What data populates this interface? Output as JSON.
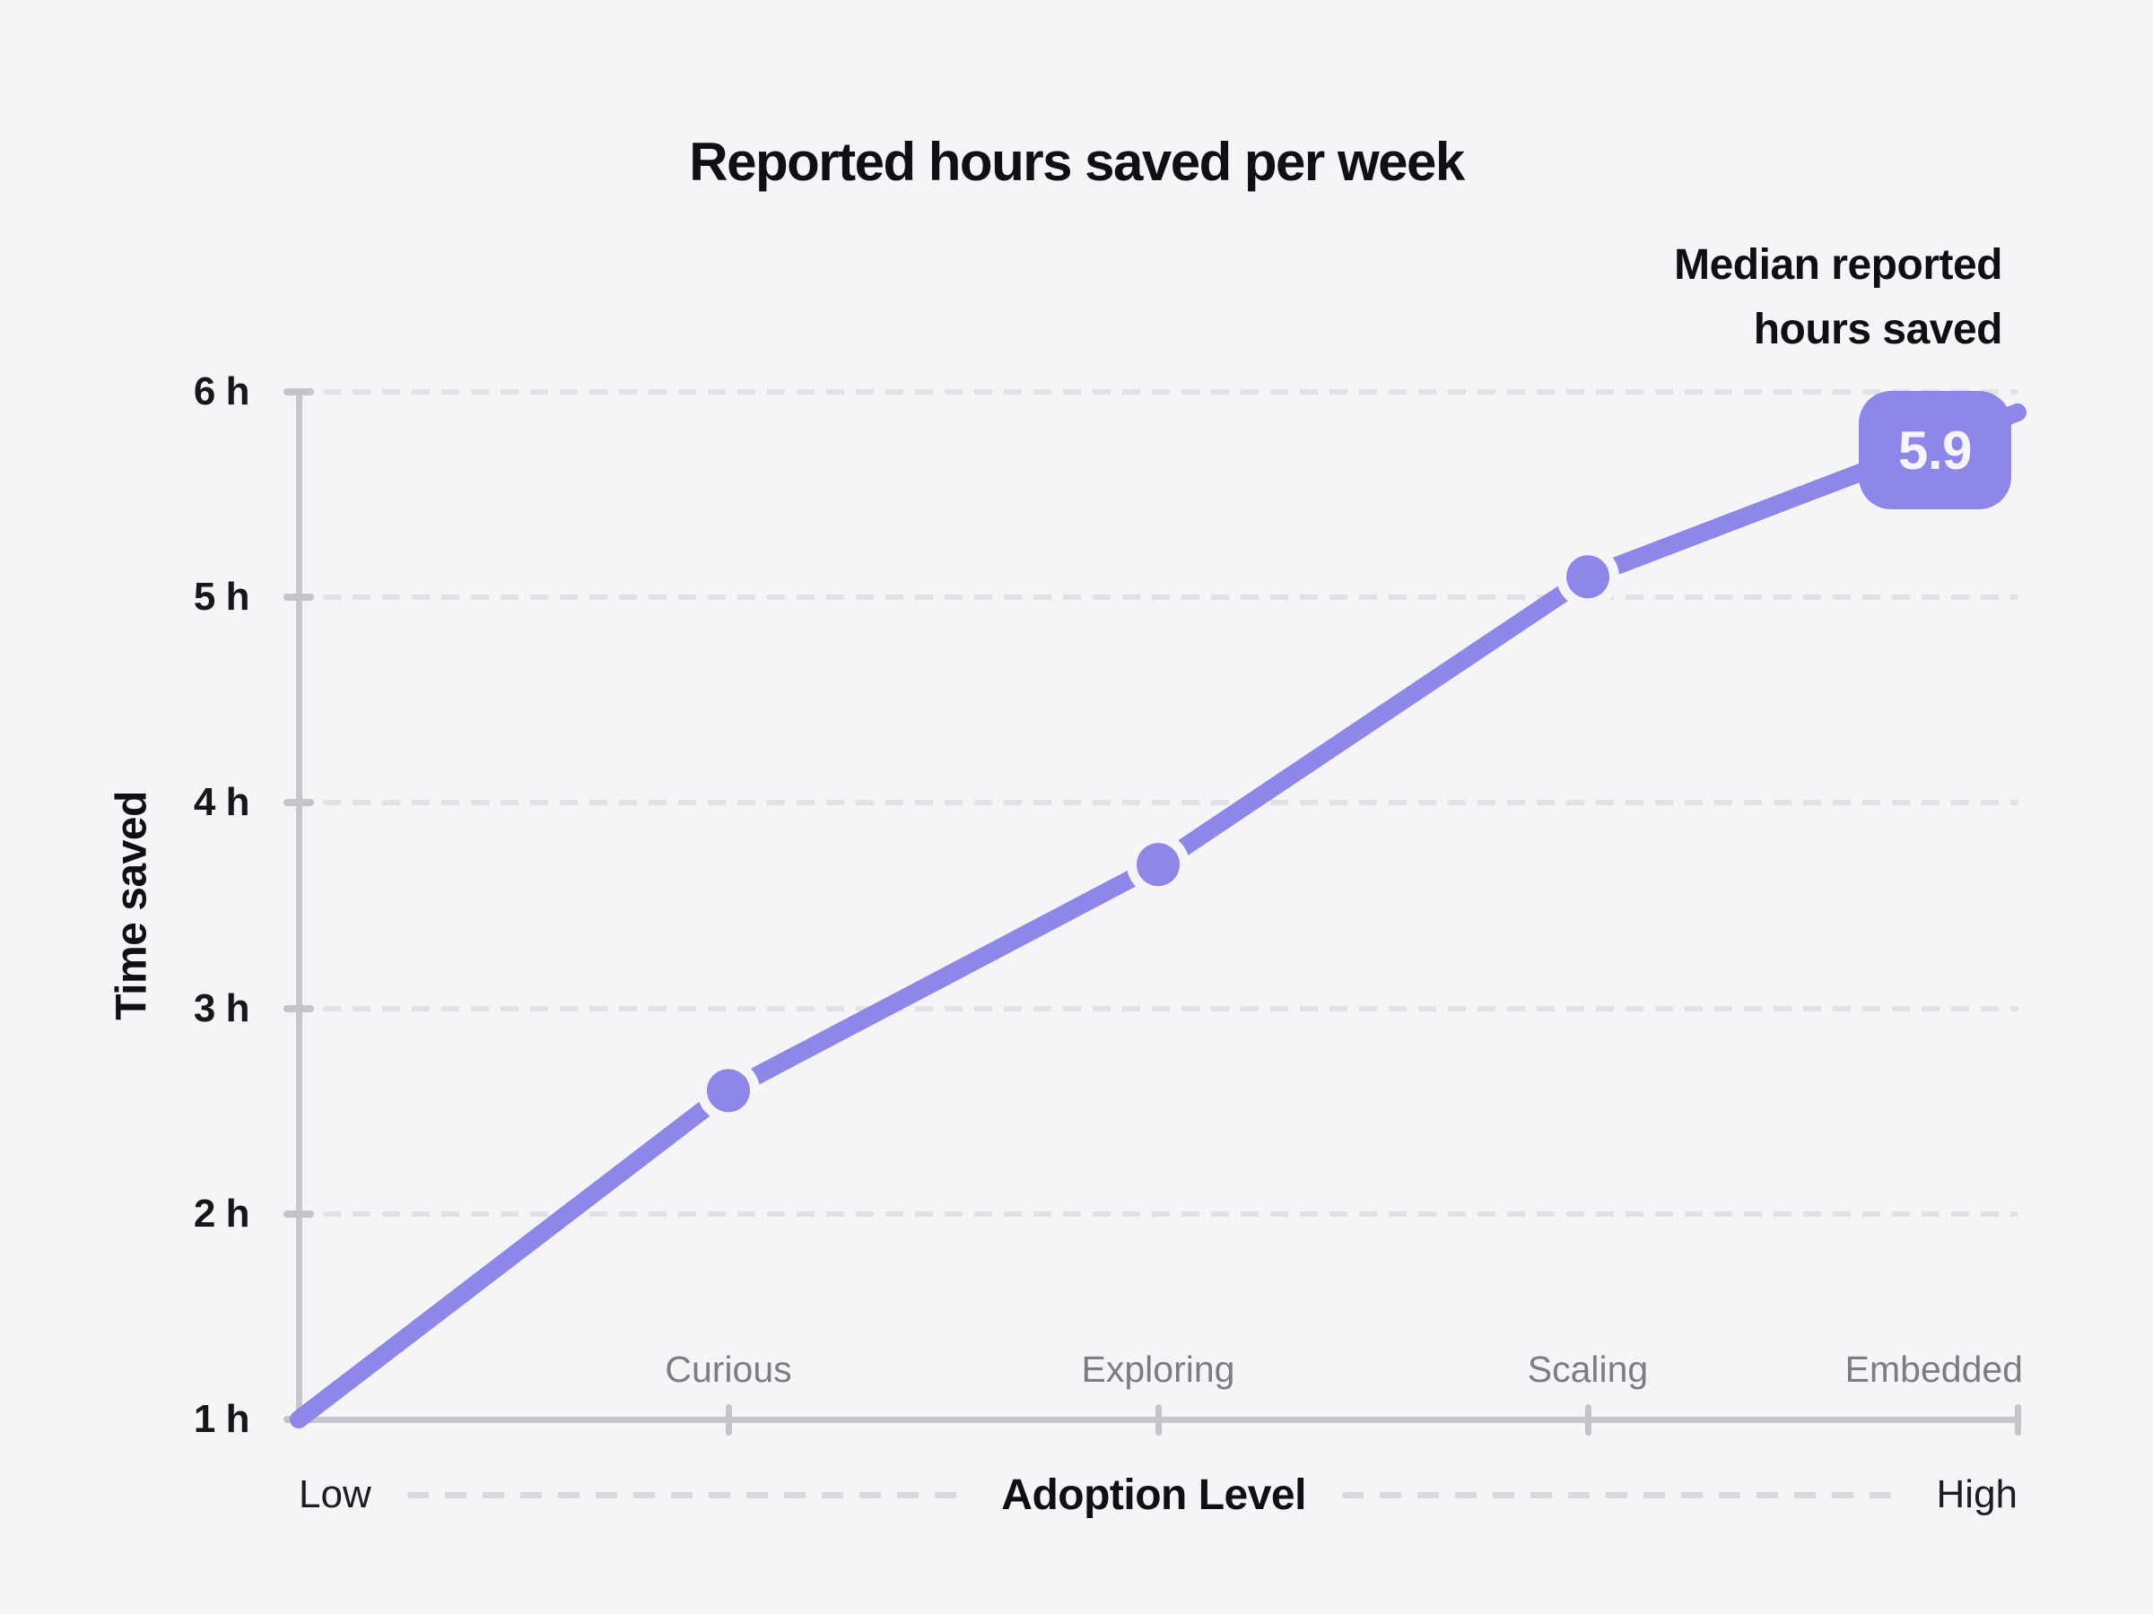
{
  "page": {
    "background": "#f5f4f6"
  },
  "chart_data": {
    "type": "line",
    "title": "Reported hours saved per week",
    "legend": {
      "label": "Median reported hours saved",
      "lines": [
        "Median reported",
        "hours saved"
      ]
    },
    "x_axis": {
      "label": "Adoption Level",
      "min_label": "Low",
      "max_label": "High",
      "categories": [
        "Curious",
        "Exploring",
        "Scaling",
        "Embedded"
      ]
    },
    "y_axis": {
      "label": "Time saved",
      "unit": "h",
      "ticks": [
        {
          "label": "1 h",
          "value": 1
        },
        {
          "label": "2 h",
          "value": 2
        },
        {
          "label": "3 h",
          "value": 3
        },
        {
          "label": "4 h",
          "value": 4
        },
        {
          "label": "5 h",
          "value": 5
        },
        {
          "label": "6 h",
          "value": 6
        }
      ],
      "range": [
        1,
        6
      ]
    },
    "grid": "horizontal-dashed",
    "legend_position": "top-right",
    "series": [
      {
        "name": "Median reported hours saved",
        "points": [
          {
            "category": "Low",
            "value": 1.0
          },
          {
            "category": "Curious",
            "value": 2.6
          },
          {
            "category": "Exploring",
            "value": 3.7
          },
          {
            "category": "Scaling",
            "value": 5.1
          },
          {
            "category": "Embedded",
            "value": 5.9
          }
        ]
      }
    ],
    "highlight_badge": {
      "label": "5.9",
      "category": "Embedded"
    },
    "colors": {
      "line": "#8e86e9",
      "dot": "#8e86e9",
      "badge_bg": "#8e86e9",
      "badge_text": "#f6f5fc",
      "axis": "#c7c6cc",
      "gridline": "#e2e1e6",
      "category_label": "#7d7c83",
      "text": "#0f0f14"
    }
  }
}
